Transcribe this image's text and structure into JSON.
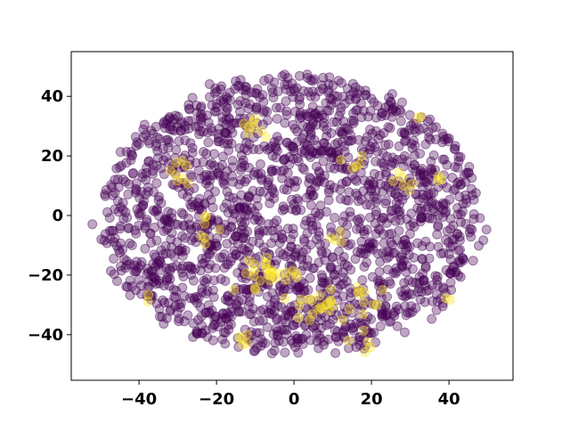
{
  "chart_data": {
    "type": "scatter",
    "title": "",
    "xlabel": "",
    "ylabel": "",
    "xlim": [
      -57,
      57
    ],
    "ylim": [
      -56,
      56
    ],
    "xticks": [
      -40,
      -20,
      0,
      20,
      40
    ],
    "yticks": [
      -40,
      -20,
      0,
      20,
      40
    ],
    "xtick_labels": [
      "−40",
      "−20",
      "0",
      "20",
      "40"
    ],
    "ytick_labels": [
      "−40",
      "−20",
      "0",
      "20",
      "40"
    ],
    "grid": false,
    "legend": "none",
    "marker_alpha": 0.35,
    "series": [
      {
        "color": "#440154",
        "shape": "disk",
        "radius": 48,
        "n": 1900,
        "cluster_mode": "uniform"
      },
      {
        "color": "#fde725",
        "shape": "clusters",
        "clusters": [
          {
            "cx": -10,
            "cy": 30,
            "n": 8,
            "spread": 2
          },
          {
            "cx": -30,
            "cy": 15,
            "n": 8,
            "spread": 2
          },
          {
            "cx": -22,
            "cy": -4,
            "n": 7,
            "spread": 2
          },
          {
            "cx": -5,
            "cy": -21,
            "n": 28,
            "spread": 4
          },
          {
            "cx": 6,
            "cy": -30,
            "n": 16,
            "spread": 3
          },
          {
            "cx": 19,
            "cy": -30,
            "n": 12,
            "spread": 3
          },
          {
            "cx": -12,
            "cy": -41,
            "n": 5,
            "spread": 2
          },
          {
            "cx": 17,
            "cy": -44,
            "n": 5,
            "spread": 2
          },
          {
            "cx": 16,
            "cy": 18,
            "n": 5,
            "spread": 1.5
          },
          {
            "cx": 28,
            "cy": 11,
            "n": 6,
            "spread": 2
          },
          {
            "cx": 33,
            "cy": 34,
            "n": 2,
            "spread": 1
          },
          {
            "cx": 38,
            "cy": 13,
            "n": 3,
            "spread": 1
          },
          {
            "cx": -37,
            "cy": -29,
            "n": 2,
            "spread": 1
          },
          {
            "cx": 11,
            "cy": -8,
            "n": 4,
            "spread": 1.5
          },
          {
            "cx": 40,
            "cy": -30,
            "n": 2,
            "spread": 1
          }
        ]
      }
    ]
  }
}
